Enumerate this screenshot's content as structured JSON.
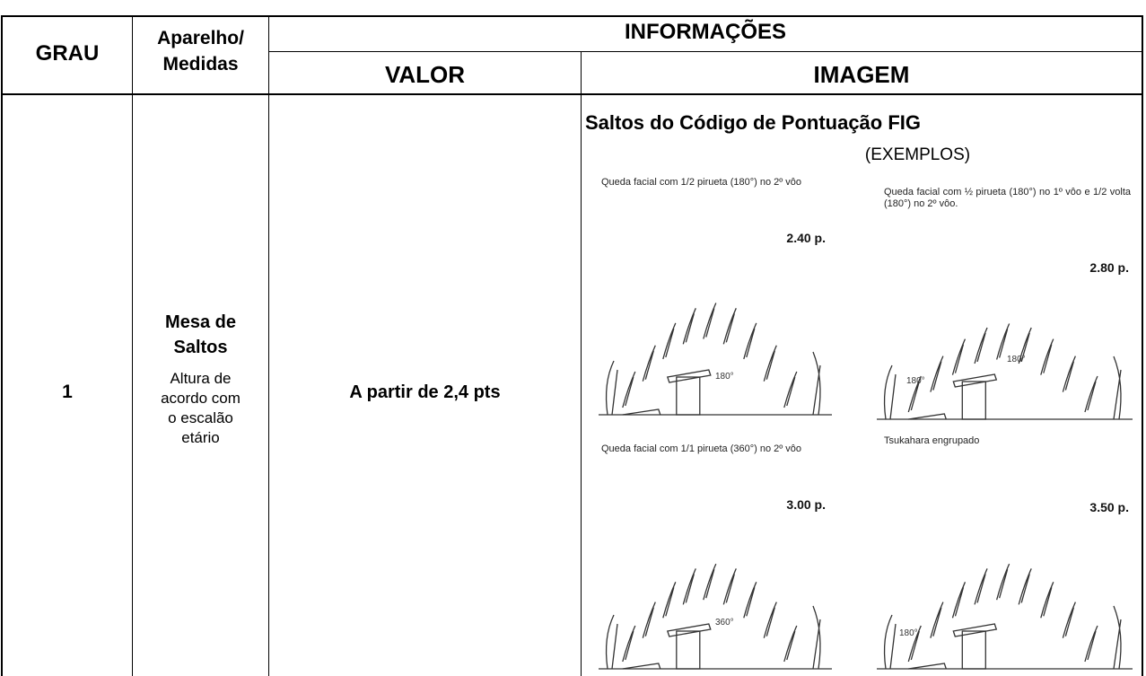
{
  "table": {
    "header": {
      "grau": "GRAU",
      "aparelho": [
        "Aparelho/",
        "Medidas"
      ],
      "informacoes": "INFORMAÇÕES",
      "valor": "VALOR",
      "imagem": "IMAGEM"
    },
    "row": {
      "grau": "1",
      "aparelho": [
        "Mesa de",
        "Saltos"
      ],
      "medidas": [
        "Altura de",
        "acordo com",
        "o escalão",
        "etário"
      ],
      "valor": "A partir de 2,4 pts"
    },
    "imagem": {
      "title": "Saltos do Código de Pontuação FIG",
      "subtitle": "(EXEMPLOS)",
      "vaults": [
        {
          "description": "Queda facial com 1/2 pirueta (180°) no 2º vôo",
          "points": "2.40 p.",
          "angles": [
            "180°"
          ]
        },
        {
          "description": "Queda facial com ½ pirueta (180°) no 1º vôo e 1/2 volta (180°) no 2º vôo.",
          "points": "2.80 p.",
          "angles": [
            "180°",
            "180°"
          ]
        },
        {
          "description": "Queda facial com 1/1 pirueta (360°) no 2º vôo",
          "points": "3.00 p.",
          "angles": [
            "360°"
          ]
        },
        {
          "description": "Tsukahara engrupado",
          "points": "3.50 p.",
          "angles": [
            "180°"
          ]
        }
      ]
    }
  }
}
